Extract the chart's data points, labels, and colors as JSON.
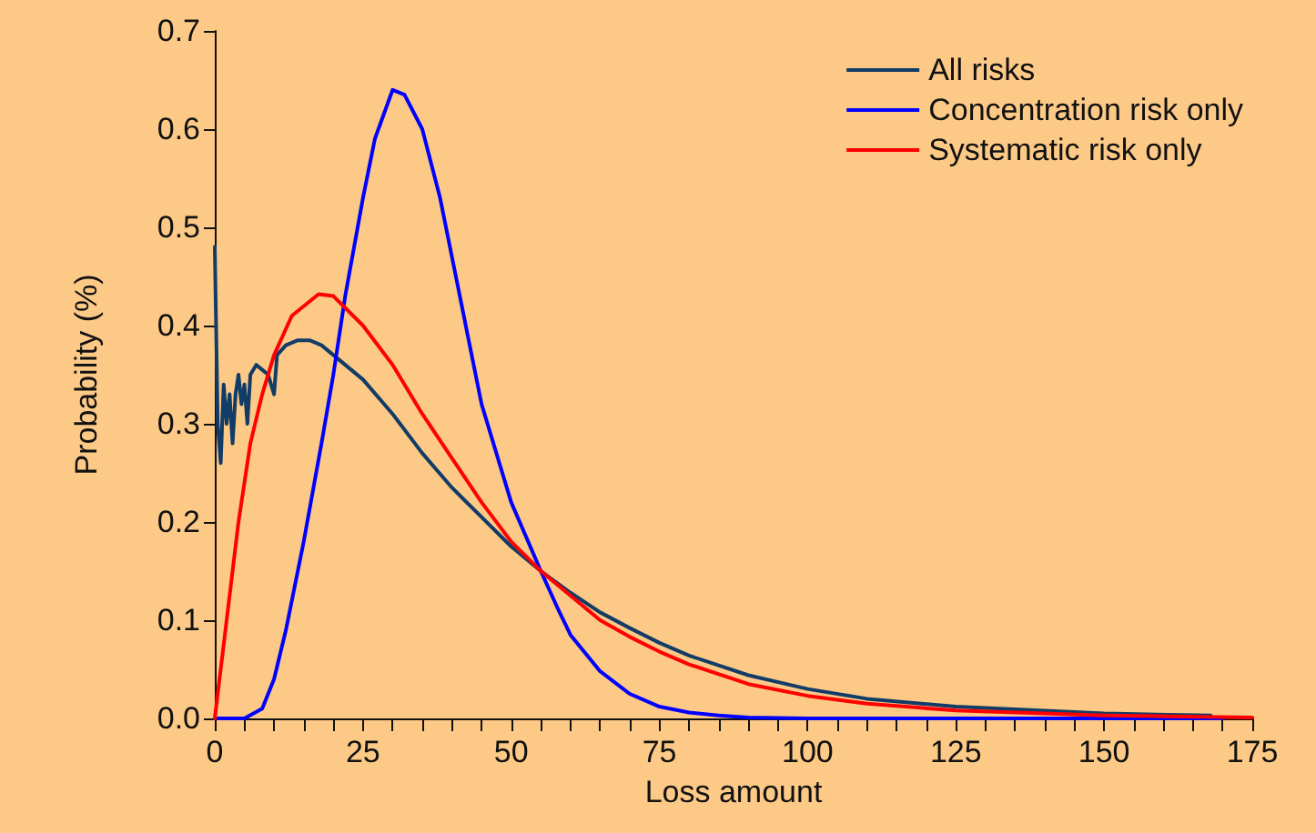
{
  "chart_data": {
    "type": "line",
    "xlabel": "Loss amount",
    "ylabel": "Probability (%)",
    "xlim": [
      0,
      175
    ],
    "ylim": [
      0,
      0.7
    ],
    "xticks": [
      0,
      {
        "value": 5,
        "label": null
      },
      {
        "value": 10,
        "label": null
      },
      {
        "value": 15,
        "label": null
      },
      {
        "value": 20,
        "label": null
      },
      25,
      {
        "value": 30,
        "label": null
      },
      {
        "value": 35,
        "label": null
      },
      {
        "value": 40,
        "label": null
      },
      {
        "value": 45,
        "label": null
      },
      50,
      {
        "value": 55,
        "label": null
      },
      {
        "value": 60,
        "label": null
      },
      {
        "value": 65,
        "label": null
      },
      {
        "value": 70,
        "label": null
      },
      75,
      {
        "value": 80,
        "label": null
      },
      {
        "value": 85,
        "label": null
      },
      {
        "value": 90,
        "label": null
      },
      {
        "value": 95,
        "label": null
      },
      100,
      {
        "value": 105,
        "label": null
      },
      {
        "value": 110,
        "label": null
      },
      {
        "value": 115,
        "label": null
      },
      {
        "value": 120,
        "label": null
      },
      125,
      {
        "value": 130,
        "label": null
      },
      {
        "value": 135,
        "label": null
      },
      {
        "value": 140,
        "label": null
      },
      {
        "value": 145,
        "label": null
      },
      150,
      {
        "value": 155,
        "label": null
      },
      {
        "value": 160,
        "label": null
      },
      {
        "value": 165,
        "label": null
      },
      {
        "value": 170,
        "label": null
      },
      175
    ],
    "yticks": [
      {
        "value": 0,
        "label": "0.0"
      },
      {
        "value": 0.1,
        "label": "0.1"
      },
      {
        "value": 0.2,
        "label": "0.2"
      },
      {
        "value": 0.3,
        "label": "0.3"
      },
      {
        "value": 0.4,
        "label": "0.4"
      },
      {
        "value": 0.5,
        "label": "0.5"
      },
      {
        "value": 0.6,
        "label": "0.6"
      },
      {
        "value": 0.7,
        "label": "0.7"
      }
    ],
    "grid": false,
    "legend": "top right",
    "marker": "none",
    "line_style": "solid",
    "series": [
      {
        "name": "All risks",
        "color": "#123c68",
        "x": [
          0,
          0.5,
          1,
          1.5,
          2,
          2.5,
          3,
          3.5,
          4,
          4.5,
          5,
          5.5,
          6,
          7,
          8,
          9,
          10,
          10.5,
          12,
          14,
          16,
          18,
          20,
          25,
          30,
          35,
          40,
          45,
          50,
          55,
          60,
          65,
          70,
          75,
          80,
          90,
          100,
          110,
          125,
          150,
          168
        ],
        "values": [
          0.48,
          0.3,
          0.26,
          0.34,
          0.3,
          0.33,
          0.28,
          0.33,
          0.35,
          0.32,
          0.34,
          0.3,
          0.35,
          0.36,
          0.355,
          0.35,
          0.33,
          0.37,
          0.38,
          0.385,
          0.385,
          0.38,
          0.37,
          0.345,
          0.31,
          0.27,
          0.235,
          0.205,
          0.175,
          0.15,
          0.128,
          0.108,
          0.092,
          0.077,
          0.064,
          0.044,
          0.03,
          0.02,
          0.012,
          0.005,
          0.003
        ]
      },
      {
        "name": "Concentration risk only",
        "color": "#0000ff",
        "x": [
          0,
          5,
          8,
          10,
          12,
          15,
          18,
          20,
          22,
          25,
          27,
          30,
          32,
          35,
          38,
          40,
          43,
          45,
          50,
          55,
          58,
          60,
          65,
          70,
          75,
          80,
          85,
          90,
          100,
          125,
          150,
          170
        ],
        "values": [
          0,
          0,
          0.01,
          0.04,
          0.09,
          0.18,
          0.28,
          0.35,
          0.43,
          0.53,
          0.59,
          0.64,
          0.635,
          0.6,
          0.53,
          0.47,
          0.38,
          0.32,
          0.22,
          0.15,
          0.11,
          0.085,
          0.048,
          0.025,
          0.012,
          0.006,
          0.003,
          0.001,
          0,
          0,
          0,
          0
        ]
      },
      {
        "name": "Systematic risk only",
        "color": "#ff0000",
        "x": [
          0,
          2,
          4,
          6,
          8,
          10,
          13,
          17.5,
          20,
          25,
          30,
          35,
          40,
          45,
          50,
          55,
          60,
          65,
          70,
          75,
          80,
          90,
          100,
          110,
          125,
          150,
          175
        ],
        "values": [
          0,
          0.1,
          0.2,
          0.28,
          0.33,
          0.37,
          0.41,
          0.432,
          0.43,
          0.4,
          0.36,
          0.31,
          0.265,
          0.22,
          0.18,
          0.15,
          0.125,
          0.1,
          0.083,
          0.068,
          0.055,
          0.035,
          0.023,
          0.015,
          0.008,
          0.003,
          0.001
        ]
      }
    ]
  }
}
